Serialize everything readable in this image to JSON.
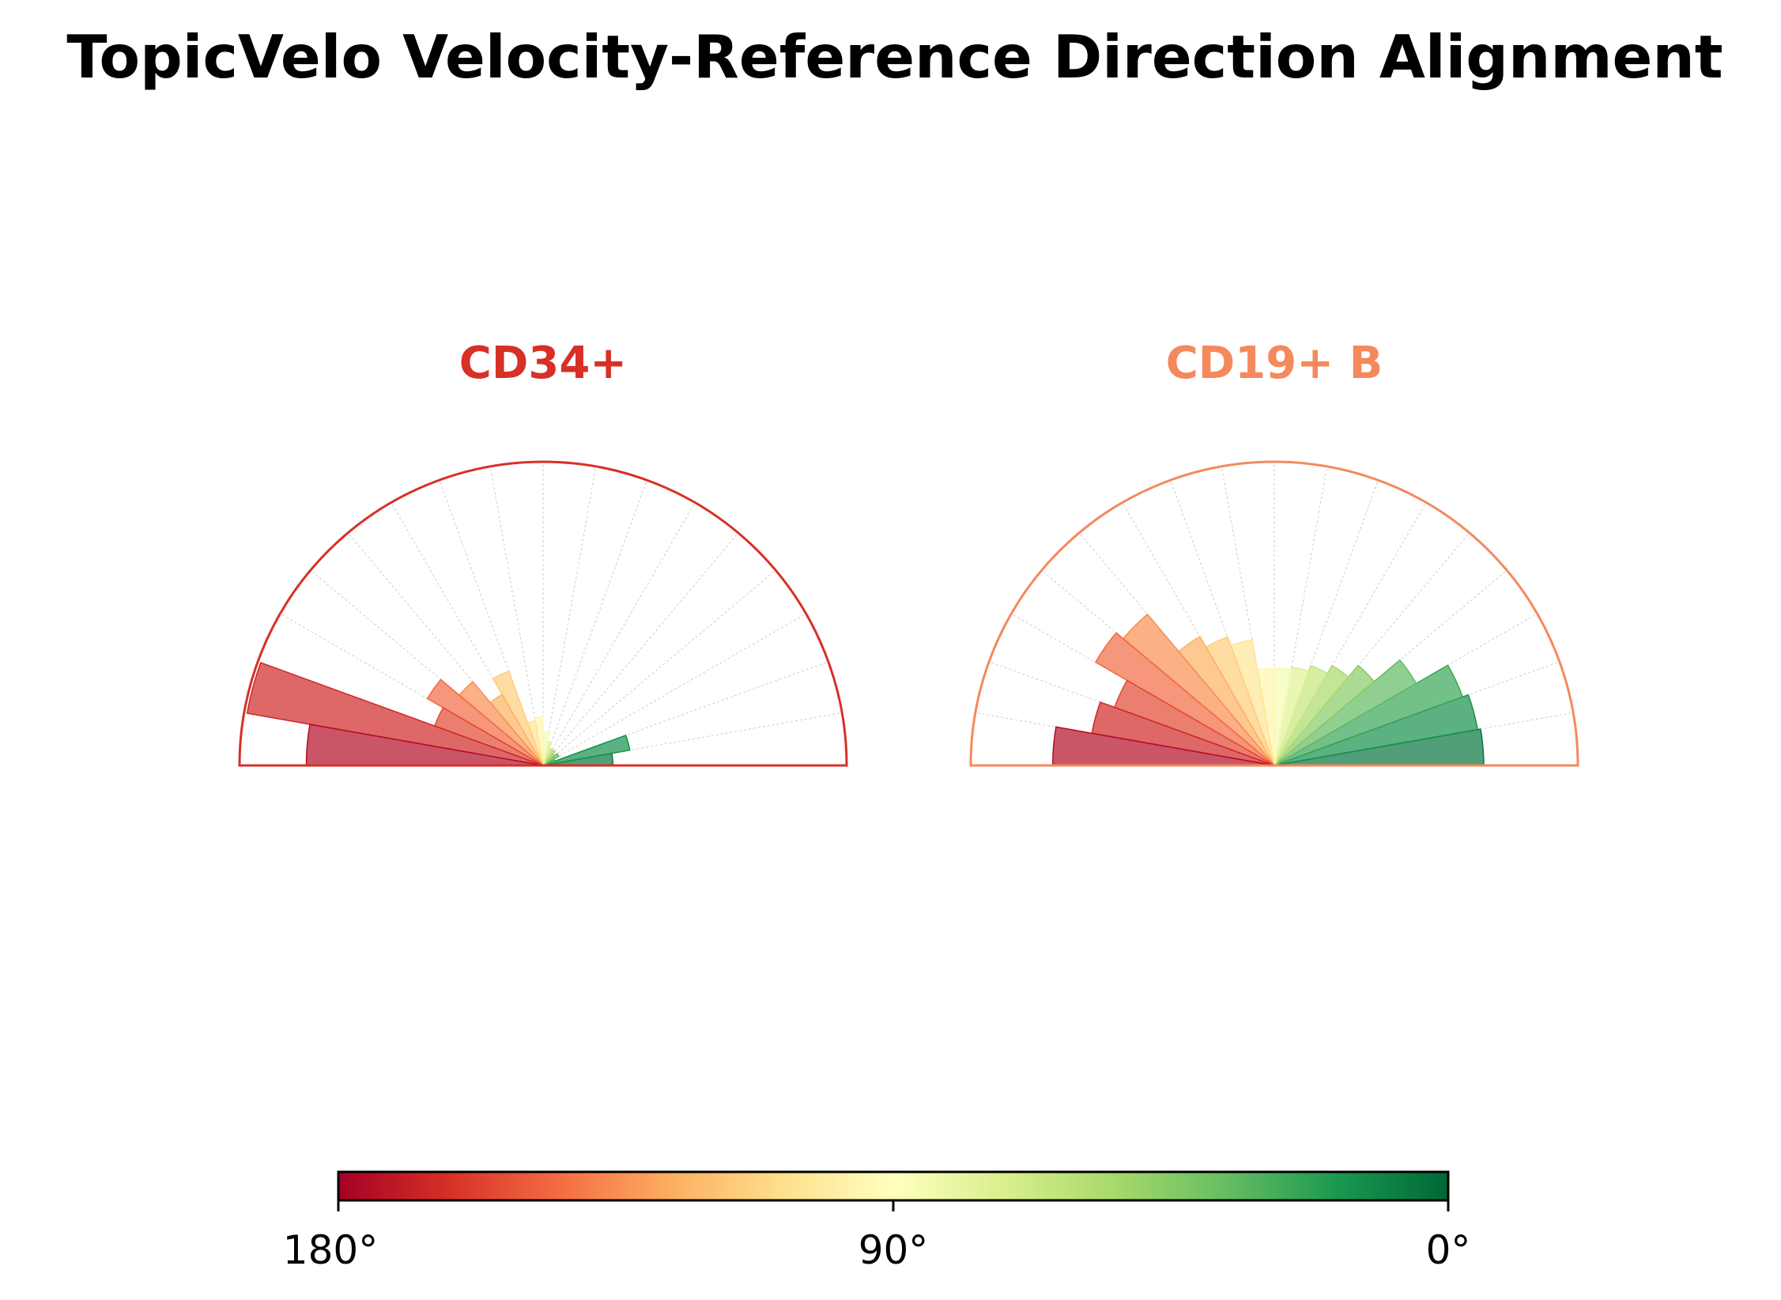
{
  "title": "TopicVelo Velocity-Reference Direction Alignment",
  "chart_data": {
    "type": "polar-histogram",
    "angle_unit": "degrees",
    "angle_range": [
      0,
      180
    ],
    "bin_width": 10,
    "bins": [
      5,
      15,
      25,
      35,
      45,
      55,
      65,
      75,
      85,
      95,
      105,
      115,
      125,
      135,
      145,
      155,
      165,
      175
    ],
    "colormap": "RdYlGn_r",
    "colors": {
      "red_end": "#a50026",
      "mid": "#ffffbf",
      "green_end": "#006837"
    },
    "grid": true,
    "panels": [
      {
        "name": "CD34+",
        "title_color": "#d73027",
        "values": [
          0.23,
          0.29,
          0.04,
          0.06,
          0.05,
          0.06,
          0.06,
          0.08,
          0.11,
          0.16,
          0.15,
          0.33,
          0.27,
          0.36,
          0.44,
          0.38,
          0.99,
          0.78
        ]
      },
      {
        "name": "CD19+ B",
        "title_color": "#f4895d",
        "values": [
          0.69,
          0.68,
          0.66,
          0.54,
          0.43,
          0.38,
          0.35,
          0.33,
          0.32,
          0.32,
          0.42,
          0.45,
          0.49,
          0.65,
          0.68,
          0.56,
          0.61,
          0.73
        ]
      }
    ],
    "colorbar": {
      "ticks": [
        {
          "value": 180,
          "label": "180°"
        },
        {
          "value": 90,
          "label": "90°"
        },
        {
          "value": 0,
          "label": "0°"
        }
      ]
    }
  }
}
